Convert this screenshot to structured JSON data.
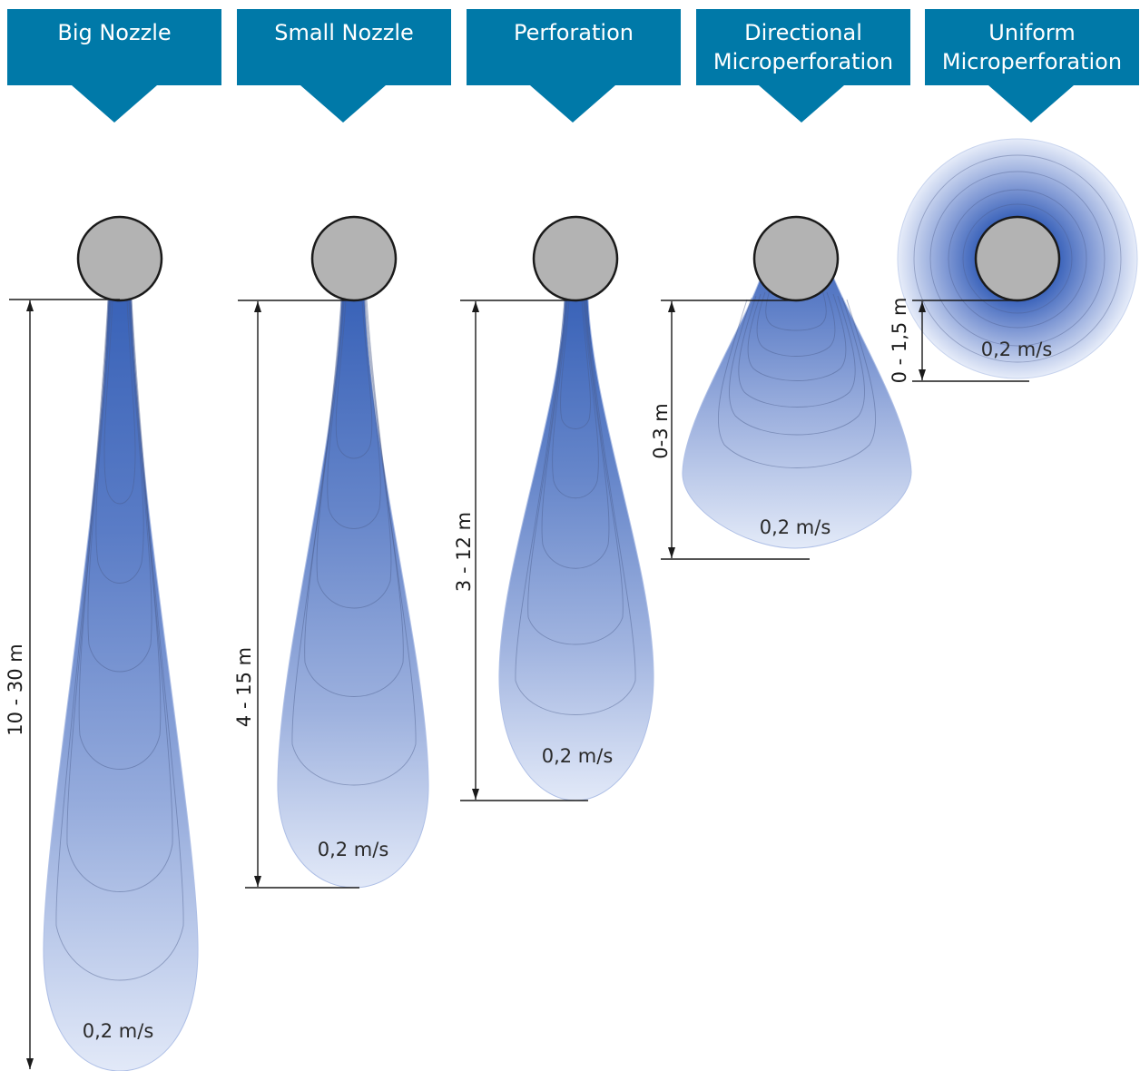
{
  "colors": {
    "header": "#0079a8",
    "pipe_fill": "#b3b3b3",
    "pipe_stroke": "#1a1a1a",
    "plume_core": "#3a63b8",
    "plume_edge": "#dfe7f7",
    "contour_line": "#4a5a8a",
    "dimension_line": "#1a1a1a"
  },
  "columns": [
    {
      "id": "big-nozzle",
      "header": [
        "Big Nozzle"
      ],
      "throw_label": "10 - 30 m",
      "velocity_label": "0,2 m/s",
      "shape": "long-plume"
    },
    {
      "id": "small-nozzle",
      "header": [
        "Small Nozzle"
      ],
      "throw_label": "4 - 15 m",
      "velocity_label": "0,2 m/s",
      "shape": "plume"
    },
    {
      "id": "perforation",
      "header": [
        "Perforation"
      ],
      "throw_label": "3 - 12 m",
      "velocity_label": "0,2 m/s",
      "shape": "plume"
    },
    {
      "id": "directional-microperforation",
      "header": [
        "Directional",
        "Microperforation"
      ],
      "throw_label": "0-3 m",
      "velocity_label": "0,2 m/s",
      "shape": "cone"
    },
    {
      "id": "uniform-microperforation",
      "header": [
        "Uniform",
        "Microperforation"
      ],
      "throw_label": "0 - 1,5 m",
      "velocity_label": "0,2 m/s",
      "shape": "radial"
    }
  ]
}
